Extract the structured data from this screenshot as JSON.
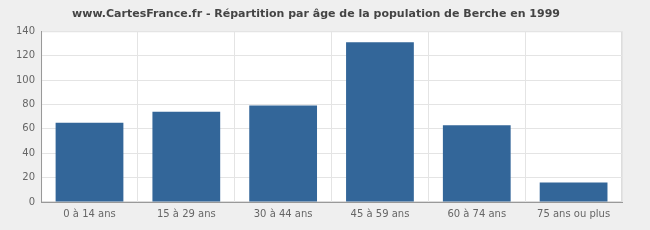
{
  "chart_data": {
    "type": "bar",
    "title": "www.CartesFrance.fr - Répartition par âge de la population de Berche en 1999",
    "categories": [
      "0 à 14 ans",
      "15 à 29 ans",
      "30 à 44 ans",
      "45 à 59 ans",
      "60 à 74 ans",
      "75 ans ou plus"
    ],
    "values": [
      65,
      74,
      79,
      131,
      63,
      16
    ],
    "color": "#336699",
    "ylim": [
      0,
      140
    ],
    "yticks": [
      0,
      20,
      40,
      60,
      80,
      100,
      120,
      140
    ],
    "grid": true
  }
}
